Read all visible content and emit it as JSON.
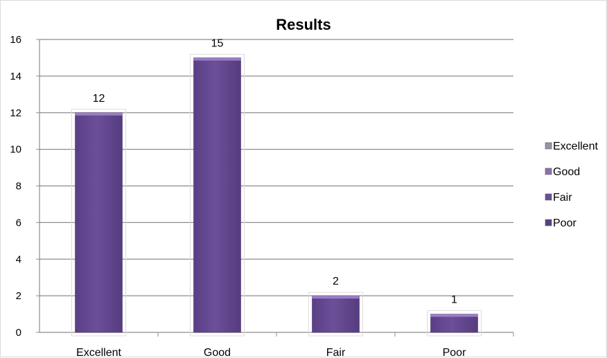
{
  "chart_data": {
    "type": "bar",
    "title": "Results",
    "categories": [
      "Excellent",
      "Good",
      "Fair",
      "Poor"
    ],
    "values": [
      12,
      15,
      2,
      1
    ],
    "data_labels": [
      "12",
      "15",
      "2",
      "1"
    ],
    "ylim": [
      0,
      16
    ],
    "yticks": [
      0,
      2,
      4,
      6,
      8,
      10,
      12,
      14,
      16
    ],
    "grid": true,
    "legend": {
      "position": "right",
      "entries": [
        "Excellent",
        "Good",
        "Fair",
        "Poor"
      ],
      "swatch_colors": [
        "#9a93a6",
        "#8f6fae",
        "#6a4f96",
        "#5a3f85"
      ]
    },
    "bar_color": "#6b4f98"
  }
}
